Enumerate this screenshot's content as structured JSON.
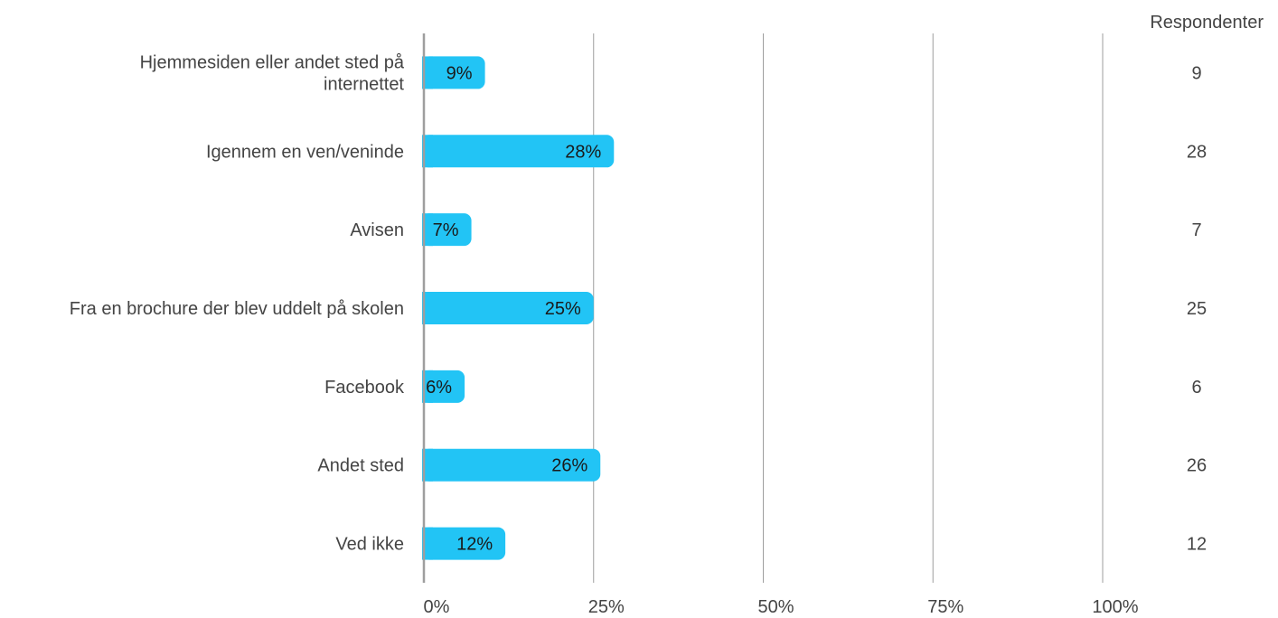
{
  "chart_data": {
    "type": "bar",
    "orientation": "horizontal",
    "categories": [
      [
        "Hjemmesiden eller andet sted på",
        "internettet"
      ],
      [
        "Igennem en ven/veninde"
      ],
      [
        "Avisen"
      ],
      [
        "Fra en brochure der blev uddelt på skolen"
      ],
      [
        "Facebook"
      ],
      [
        "Andet sted"
      ],
      [
        "Ved ikke"
      ]
    ],
    "values": [
      9,
      28,
      7,
      25,
      6,
      26,
      12
    ],
    "value_labels": [
      "9%",
      "28%",
      "7%",
      "25%",
      "6%",
      "26%",
      "12%"
    ],
    "respondents": [
      "9",
      "28",
      "7",
      "25",
      "6",
      "26",
      "12"
    ],
    "respondents_header": "Respondenter",
    "xlim": [
      0,
      100
    ],
    "xticks": [
      0,
      25,
      50,
      75,
      100
    ],
    "xtick_labels": [
      "0%",
      "25%",
      "50%",
      "75%",
      "100%"
    ],
    "grid": true,
    "colors": {
      "bar": "#22c4f5",
      "grid": "#9e9e9e",
      "axis": "#9e9e9e"
    }
  }
}
